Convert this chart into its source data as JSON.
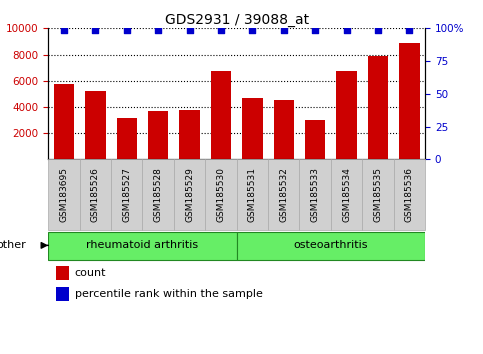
{
  "title": "GDS2931 / 39088_at",
  "samples": [
    "GSM183695",
    "GSM185526",
    "GSM185527",
    "GSM185528",
    "GSM185529",
    "GSM185530",
    "GSM185531",
    "GSM185532",
    "GSM185533",
    "GSM185534",
    "GSM185535",
    "GSM185536"
  ],
  "counts": [
    5750,
    5200,
    3150,
    3650,
    3800,
    6750,
    4650,
    4500,
    3000,
    6750,
    7900,
    8850
  ],
  "percentiles": [
    99,
    99,
    99,
    99,
    99,
    99,
    99,
    99,
    99,
    99,
    99,
    99
  ],
  "bar_color": "#cc0000",
  "dot_color": "#0000cc",
  "ylim_left": [
    0,
    10000
  ],
  "ylim_right": [
    0,
    100
  ],
  "yticks_left": [
    2000,
    4000,
    6000,
    8000,
    10000
  ],
  "yticks_right": [
    0,
    25,
    50,
    75,
    100
  ],
  "ytick_labels_left": [
    "2000",
    "4000",
    "6000",
    "8000",
    "10000"
  ],
  "ytick_labels_right": [
    "0",
    "25",
    "50",
    "75",
    "100%"
  ],
  "background_color": "#ffffff",
  "xtick_bg_color": "#d0d0d0",
  "legend_count_label": "count",
  "legend_percentile_label": "percentile rank within the sample",
  "other_label": "other",
  "group1_name": "rheumatoid arthritis",
  "group2_name": "osteoarthritis",
  "group1_indices": [
    0,
    1,
    2,
    3,
    4,
    5
  ],
  "group2_indices": [
    6,
    7,
    8,
    9,
    10,
    11
  ],
  "group_fill_color": "#66ee66",
  "group_edge_color": "#228822"
}
